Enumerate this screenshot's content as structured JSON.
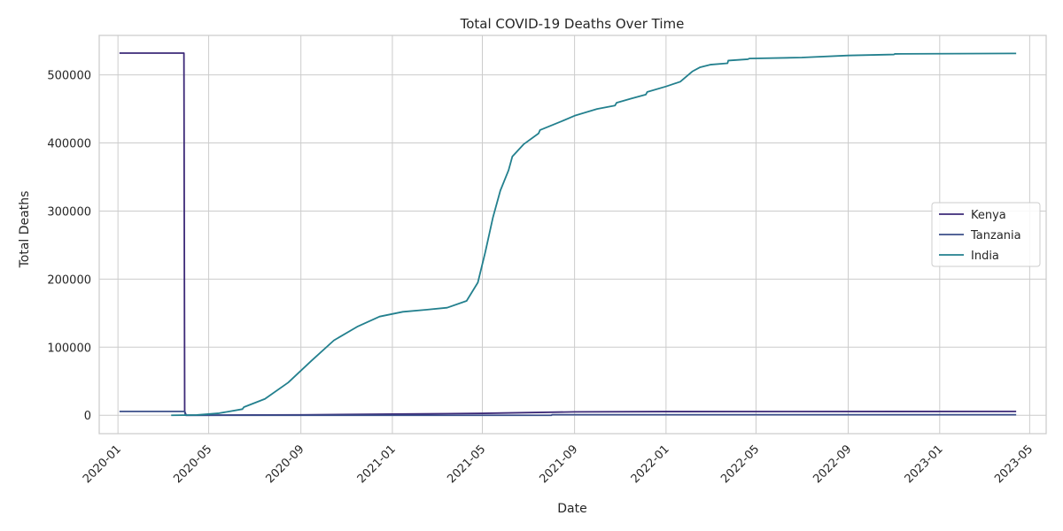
{
  "chart_data": {
    "type": "line",
    "title": "Total COVID-19 Deaths Over Time",
    "xlabel": "Date",
    "ylabel": "Total Deaths",
    "xlim": [
      "2019-12-07",
      "2023-05-23"
    ],
    "ylim": [
      -27000,
      558000
    ],
    "grid": true,
    "legend_position": "center-right",
    "x_ticks": [
      "2020-01",
      "2020-05",
      "2020-09",
      "2021-01",
      "2021-05",
      "2021-09",
      "2022-01",
      "2022-05",
      "2022-09",
      "2023-01",
      "2023-05"
    ],
    "y_ticks": [
      0,
      100000,
      200000,
      300000,
      400000,
      500000
    ],
    "series": [
      {
        "name": "Kenya",
        "color": "#3d2a78",
        "points": [
          [
            "2020-01-03",
            532000
          ],
          [
            "2020-03-29",
            532000
          ],
          [
            "2020-03-30",
            5700
          ],
          [
            "2020-04-01",
            0
          ],
          [
            "2020-07-01",
            400
          ],
          [
            "2020-09-01",
            600
          ],
          [
            "2021-01-01",
            1700
          ],
          [
            "2021-05-01",
            2800
          ],
          [
            "2021-09-01",
            5000
          ],
          [
            "2022-01-01",
            5400
          ],
          [
            "2023-04-13",
            5700
          ]
        ]
      },
      {
        "name": "Tanzania",
        "color": "#3b4f8a",
        "points": [
          [
            "2020-01-03",
            5700
          ],
          [
            "2020-03-30",
            5700
          ],
          [
            "2020-03-31",
            0
          ],
          [
            "2021-08-01",
            0
          ],
          [
            "2021-08-02",
            800
          ],
          [
            "2023-04-13",
            800
          ]
        ]
      },
      {
        "name": "India",
        "color": "#23808e",
        "points": [
          [
            "2020-03-12",
            0
          ],
          [
            "2020-04-15",
            400
          ],
          [
            "2020-05-15",
            3000
          ],
          [
            "2020-06-15",
            9000
          ],
          [
            "2020-06-17",
            12000
          ],
          [
            "2020-07-15",
            24000
          ],
          [
            "2020-08-15",
            48000
          ],
          [
            "2020-09-15",
            80000
          ],
          [
            "2020-10-15",
            110000
          ],
          [
            "2020-11-15",
            130000
          ],
          [
            "2020-12-15",
            145000
          ],
          [
            "2021-01-15",
            152000
          ],
          [
            "2021-02-15",
            155000
          ],
          [
            "2021-03-15",
            158000
          ],
          [
            "2021-04-10",
            168000
          ],
          [
            "2021-04-25",
            195000
          ],
          [
            "2021-05-05",
            240000
          ],
          [
            "2021-05-15",
            290000
          ],
          [
            "2021-05-25",
            330000
          ],
          [
            "2021-06-05",
            360000
          ],
          [
            "2021-06-10",
            380000
          ],
          [
            "2021-06-25",
            398000
          ],
          [
            "2021-07-15",
            414000
          ],
          [
            "2021-07-17",
            419000
          ],
          [
            "2021-08-15",
            432000
          ],
          [
            "2021-09-01",
            440000
          ],
          [
            "2021-10-01",
            450000
          ],
          [
            "2021-10-25",
            455000
          ],
          [
            "2021-10-27",
            459000
          ],
          [
            "2021-11-15",
            465000
          ],
          [
            "2021-12-05",
            471000
          ],
          [
            "2021-12-07",
            475000
          ],
          [
            "2022-01-01",
            483000
          ],
          [
            "2022-01-20",
            490000
          ],
          [
            "2022-02-05",
            505000
          ],
          [
            "2022-02-15",
            511000
          ],
          [
            "2022-03-01",
            515000
          ],
          [
            "2022-03-24",
            517000
          ],
          [
            "2022-03-25",
            521000
          ],
          [
            "2022-04-20",
            523000
          ],
          [
            "2022-04-22",
            524000
          ],
          [
            "2022-07-01",
            525500
          ],
          [
            "2022-09-01",
            528500
          ],
          [
            "2022-11-01",
            530000
          ],
          [
            "2022-11-02",
            530800
          ],
          [
            "2023-04-13",
            531500
          ]
        ]
      }
    ]
  }
}
